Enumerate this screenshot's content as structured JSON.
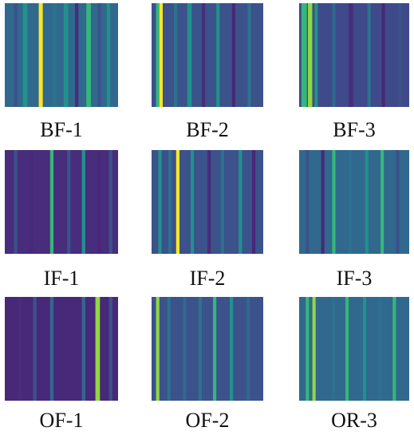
{
  "colors": {
    "purple": "#440154",
    "dark_blue": "#3b528b",
    "blue": "#31688e",
    "mid_blue": "#2c728e",
    "teal": "#21918c",
    "green": "#35b779",
    "yellow_green": "#90d743",
    "yellow": "#fde725"
  },
  "panels": [
    {
      "id": "BF-1",
      "label": "BF-1",
      "base": "#31688e",
      "stripes": [
        {
          "pos": 0.08,
          "w": 0.03,
          "c": "#3b528b"
        },
        {
          "pos": 0.16,
          "w": 0.04,
          "c": "#21918c"
        },
        {
          "pos": 0.3,
          "w": 0.035,
          "c": "#fde725"
        },
        {
          "pos": 0.42,
          "w": 0.04,
          "c": "#2c728e"
        },
        {
          "pos": 0.52,
          "w": 0.04,
          "c": "#21918c"
        },
        {
          "pos": 0.62,
          "w": 0.03,
          "c": "#472d7b"
        },
        {
          "pos": 0.72,
          "w": 0.04,
          "c": "#35b779"
        },
        {
          "pos": 0.82,
          "w": 0.03,
          "c": "#3b528b"
        },
        {
          "pos": 0.9,
          "w": 0.03,
          "c": "#21918c"
        }
      ]
    },
    {
      "id": "BF-2",
      "label": "BF-2",
      "base": "#3b528b",
      "stripes": [
        {
          "pos": 0.04,
          "w": 0.03,
          "c": "#35b779"
        },
        {
          "pos": 0.07,
          "w": 0.03,
          "c": "#fde725"
        },
        {
          "pos": 0.2,
          "w": 0.03,
          "c": "#2c728e"
        },
        {
          "pos": 0.32,
          "w": 0.04,
          "c": "#21918c"
        },
        {
          "pos": 0.45,
          "w": 0.03,
          "c": "#472d7b"
        },
        {
          "pos": 0.58,
          "w": 0.03,
          "c": "#21918c"
        },
        {
          "pos": 0.72,
          "w": 0.03,
          "c": "#482878"
        },
        {
          "pos": 0.86,
          "w": 0.03,
          "c": "#2c728e"
        }
      ]
    },
    {
      "id": "BF-3",
      "label": "BF-3",
      "base": "#3e4a89",
      "stripes": [
        {
          "pos": 0.02,
          "w": 0.05,
          "c": "#35b779"
        },
        {
          "pos": 0.08,
          "w": 0.04,
          "c": "#90d743"
        },
        {
          "pos": 0.14,
          "w": 0.03,
          "c": "#21918c"
        },
        {
          "pos": 0.3,
          "w": 0.03,
          "c": "#31688e"
        },
        {
          "pos": 0.45,
          "w": 0.04,
          "c": "#472d7b"
        },
        {
          "pos": 0.62,
          "w": 0.03,
          "c": "#2c728e"
        },
        {
          "pos": 0.75,
          "w": 0.03,
          "c": "#482878"
        },
        {
          "pos": 0.9,
          "w": 0.03,
          "c": "#3b528b"
        }
      ]
    },
    {
      "id": "IF-1",
      "label": "IF-1",
      "base": "#472d7b",
      "stripes": [
        {
          "pos": 0.08,
          "w": 0.03,
          "c": "#3b528b"
        },
        {
          "pos": 0.22,
          "w": 0.03,
          "c": "#482878"
        },
        {
          "pos": 0.4,
          "w": 0.03,
          "c": "#35b779"
        },
        {
          "pos": 0.55,
          "w": 0.03,
          "c": "#3b528b"
        },
        {
          "pos": 0.68,
          "w": 0.03,
          "c": "#21918c"
        },
        {
          "pos": 0.82,
          "w": 0.03,
          "c": "#482878"
        },
        {
          "pos": 0.92,
          "w": 0.03,
          "c": "#3b528b"
        }
      ]
    },
    {
      "id": "IF-2",
      "label": "IF-2",
      "base": "#3b528b",
      "stripes": [
        {
          "pos": 0.06,
          "w": 0.03,
          "c": "#21918c"
        },
        {
          "pos": 0.15,
          "w": 0.03,
          "c": "#2c728e"
        },
        {
          "pos": 0.22,
          "w": 0.03,
          "c": "#fde725"
        },
        {
          "pos": 0.35,
          "w": 0.03,
          "c": "#21918c"
        },
        {
          "pos": 0.5,
          "w": 0.03,
          "c": "#472d7b"
        },
        {
          "pos": 0.62,
          "w": 0.03,
          "c": "#2c728e"
        },
        {
          "pos": 0.78,
          "w": 0.03,
          "c": "#21918c"
        },
        {
          "pos": 0.9,
          "w": 0.03,
          "c": "#482878"
        }
      ]
    },
    {
      "id": "IF-3",
      "label": "IF-3",
      "base": "#31688e",
      "stripes": [
        {
          "pos": 0.06,
          "w": 0.03,
          "c": "#3b528b"
        },
        {
          "pos": 0.2,
          "w": 0.03,
          "c": "#482878"
        },
        {
          "pos": 0.3,
          "w": 0.03,
          "c": "#35b779"
        },
        {
          "pos": 0.45,
          "w": 0.03,
          "c": "#2c728e"
        },
        {
          "pos": 0.6,
          "w": 0.03,
          "c": "#21918c"
        },
        {
          "pos": 0.74,
          "w": 0.03,
          "c": "#35b779"
        },
        {
          "pos": 0.88,
          "w": 0.03,
          "c": "#3b528b"
        }
      ]
    },
    {
      "id": "OF-1",
      "label": "OF-1",
      "base": "#482878",
      "stripes": [
        {
          "pos": 0.12,
          "w": 0.03,
          "c": "#472d7b"
        },
        {
          "pos": 0.25,
          "w": 0.03,
          "c": "#3b528b"
        },
        {
          "pos": 0.4,
          "w": 0.03,
          "c": "#31688e"
        },
        {
          "pos": 0.55,
          "w": 0.03,
          "c": "#482878"
        },
        {
          "pos": 0.68,
          "w": 0.03,
          "c": "#31688e"
        },
        {
          "pos": 0.8,
          "w": 0.04,
          "c": "#90d743"
        },
        {
          "pos": 0.92,
          "w": 0.03,
          "c": "#3b528b"
        }
      ]
    },
    {
      "id": "OF-2",
      "label": "OF-2",
      "base": "#3b528b",
      "stripes": [
        {
          "pos": 0.04,
          "w": 0.03,
          "c": "#90d743"
        },
        {
          "pos": 0.14,
          "w": 0.03,
          "c": "#2c728e"
        },
        {
          "pos": 0.28,
          "w": 0.03,
          "c": "#31688e"
        },
        {
          "pos": 0.42,
          "w": 0.03,
          "c": "#2c728e"
        },
        {
          "pos": 0.55,
          "w": 0.03,
          "c": "#35b779"
        },
        {
          "pos": 0.7,
          "w": 0.03,
          "c": "#21918c"
        },
        {
          "pos": 0.85,
          "w": 0.03,
          "c": "#31688e"
        }
      ]
    },
    {
      "id": "OR-3",
      "label": "OR-3",
      "base": "#31688e",
      "stripes": [
        {
          "pos": 0.06,
          "w": 0.03,
          "c": "#35b779"
        },
        {
          "pos": 0.12,
          "w": 0.03,
          "c": "#90d743"
        },
        {
          "pos": 0.3,
          "w": 0.03,
          "c": "#2c728e"
        },
        {
          "pos": 0.42,
          "w": 0.03,
          "c": "#35b779"
        },
        {
          "pos": 0.58,
          "w": 0.03,
          "c": "#21918c"
        },
        {
          "pos": 0.72,
          "w": 0.03,
          "c": "#2c728e"
        },
        {
          "pos": 0.85,
          "w": 0.03,
          "c": "#35b779"
        }
      ]
    }
  ]
}
